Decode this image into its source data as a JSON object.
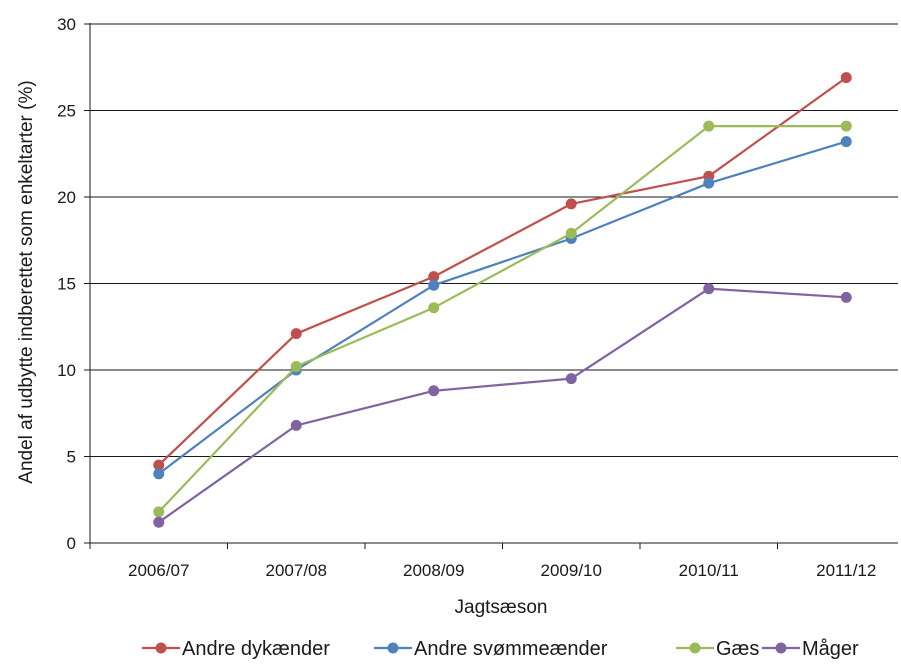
{
  "chart_data": {
    "type": "line",
    "title": "",
    "xlabel": "Jagtsæson",
    "ylabel": "Andel af udbytte indberettet som enkeltarter (%)",
    "categories": [
      "2006/07",
      "2007/08",
      "2008/09",
      "2009/10",
      "2010/11",
      "2011/12"
    ],
    "ylim": [
      0,
      30
    ],
    "yticks": [
      "0",
      "5",
      "10",
      "15",
      "20",
      "25",
      "30"
    ],
    "grid": "horizontal",
    "legend_position": "bottom",
    "series": [
      {
        "name": "Andre dykænder",
        "color": "#c0504d",
        "values": [
          4.5,
          12.1,
          15.4,
          19.6,
          21.2,
          26.9
        ]
      },
      {
        "name": "Andre svømmeænder",
        "color": "#4f81bd",
        "values": [
          4.0,
          10.0,
          14.9,
          17.6,
          20.8,
          23.2
        ]
      },
      {
        "name": "Gæs",
        "color": "#9bbb59",
        "values": [
          1.8,
          10.2,
          13.6,
          17.9,
          24.1,
          24.1
        ]
      },
      {
        "name": "Måger",
        "color": "#8064a2",
        "values": [
          1.2,
          6.8,
          8.8,
          9.5,
          14.7,
          14.2
        ]
      }
    ]
  }
}
